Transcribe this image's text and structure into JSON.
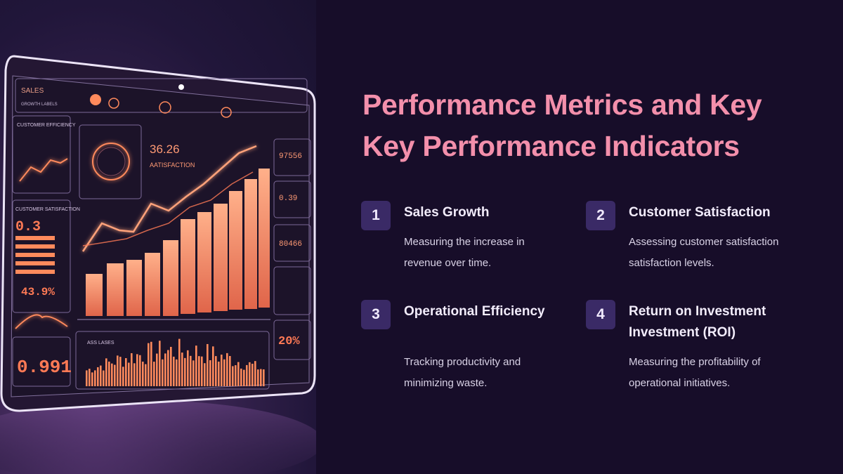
{
  "slide": {
    "title_line1": "Performance Metrics and Key",
    "title_line2": "Key Performance Indicators"
  },
  "items": [
    {
      "number": "1",
      "title": "Sales Growth",
      "desc_line1": "Measuring the increase in",
      "desc_line2": "revenue over time."
    },
    {
      "number": "2",
      "title": "Customer Satisfaction",
      "desc_line1": "Assessing customer satisfaction",
      "desc_line2": "satisfaction levels."
    },
    {
      "number": "3",
      "title": "Operational Efficiency",
      "title_line2": "",
      "desc_line1": "Tracking productivity and",
      "desc_line2": "minimizing waste."
    },
    {
      "number": "4",
      "title": "Return on Investment",
      "title_line2": "Investment (ROI)",
      "desc_line1": "Measuring the profitability of",
      "desc_line2": "operational initiatives."
    }
  ],
  "illustration": {
    "labels": {
      "sales": "SALES",
      "growth": "GROWTH LABELS",
      "customer_efficiency": "CUSTOMER EFFICIENCY",
      "customer_satisfaction": "CUSTOMER SATISFACTION",
      "main_value": "36.26",
      "main_label": "AATISFACTION",
      "left_value": "0.3",
      "left_pct": "43.9%",
      "bottom_value": "0.991",
      "right_v1": "97556",
      "right_v2": "0.39",
      "right_v3": "80466",
      "right_pct": "20%",
      "histogram_label": "ASS LASES"
    },
    "colors": {
      "accent": "#ff8a5c",
      "glow": "#ffb08a",
      "frame": "#e8dff5"
    }
  }
}
